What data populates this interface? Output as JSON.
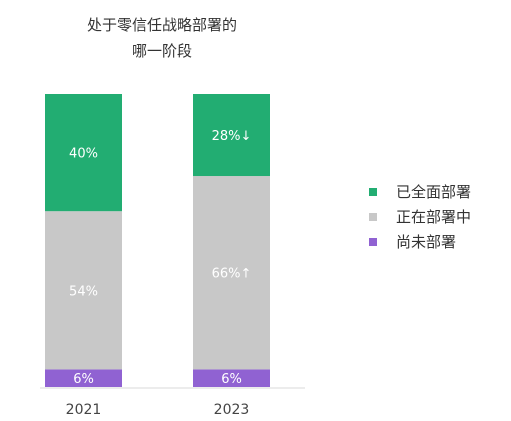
{
  "chart_data": {
    "type": "bar",
    "stacked": true,
    "title_lines": [
      "处于零信任战略部署的",
      "哪一阶段"
    ],
    "categories": [
      "2021",
      "2023"
    ],
    "ylim": [
      0,
      100
    ],
    "series": [
      {
        "name": "已全面部署",
        "color": "#22ad72",
        "values": [
          40,
          28
        ],
        "labels": [
          "40%",
          "28%↓"
        ]
      },
      {
        "name": "正在部署中",
        "color": "#c8c8c8",
        "values": [
          54,
          66
        ],
        "labels": [
          "54%",
          "66%↑"
        ]
      },
      {
        "name": "尚未部署",
        "color": "#9062d2",
        "values": [
          6,
          6
        ],
        "labels": [
          "6%",
          "6%"
        ]
      }
    ],
    "legend_position": "right",
    "grid": false
  }
}
